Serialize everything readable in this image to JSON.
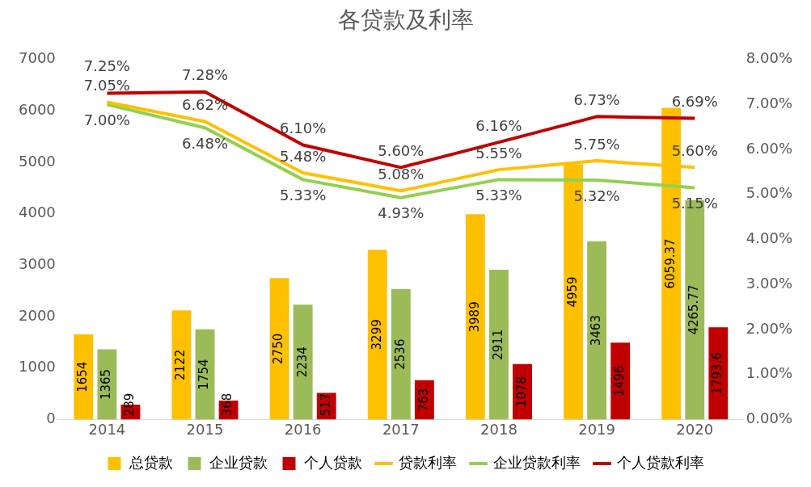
{
  "chart_data": {
    "type": "bar",
    "title": "各贷款及利率",
    "categories": [
      "2014",
      "2015",
      "2016",
      "2017",
      "2018",
      "2019",
      "2020"
    ],
    "ylim": [
      0,
      7000
    ],
    "yticks": [
      0,
      1000,
      2000,
      3000,
      4000,
      5000,
      6000,
      7000
    ],
    "y2lim": [
      0,
      8
    ],
    "y2ticks": [
      {
        "value": 0,
        "label": "0.00%"
      },
      {
        "value": 1,
        "label": "1.00%"
      },
      {
        "value": 2,
        "label": "2.00%"
      },
      {
        "value": 3,
        "label": "3.00%"
      },
      {
        "value": 4,
        "label": "4.00%"
      },
      {
        "value": 5,
        "label": "5.00%"
      },
      {
        "value": 6,
        "label": "6.00%"
      },
      {
        "value": 7,
        "label": "7.00%"
      },
      {
        "value": 8,
        "label": "8.00%"
      }
    ],
    "grid": false,
    "legend": "bottom",
    "series": [
      {
        "name": "总贷款",
        "type": "bar",
        "color": "#ffc000",
        "values": [
          1654,
          2122,
          2750,
          3299,
          3989,
          4959,
          6059.37
        ],
        "value_labels": [
          "1654",
          "2122",
          "2750",
          "3299",
          "3989",
          "4959",
          "6059.37"
        ]
      },
      {
        "name": "企业贷款",
        "type": "bar",
        "color": "#9bbb59",
        "values": [
          1365,
          1754,
          2234,
          2536,
          2911,
          3463,
          4265.77
        ],
        "value_labels": [
          "1365",
          "1754",
          "2234",
          "2536",
          "2911",
          "3463",
          "4265.77"
        ]
      },
      {
        "name": "个人贷款",
        "type": "bar",
        "color": "#c00000",
        "values": [
          289,
          368,
          517,
          763,
          1078,
          1496,
          1793.6
        ],
        "value_labels": [
          "289",
          "368",
          "517",
          "763",
          "1078",
          "1496",
          "1793.6"
        ]
      },
      {
        "name": "贷款利率",
        "type": "line",
        "axis": "y2",
        "color": "#ffc000",
        "values": [
          7.05,
          6.62,
          5.48,
          5.08,
          5.55,
          5.75,
          5.6
        ],
        "value_labels": [
          "7.05%",
          "6.62%",
          "5.48%",
          "5.08%",
          "5.55%",
          "5.75%",
          "5.60%"
        ]
      },
      {
        "name": "企业贷款利率",
        "type": "line",
        "axis": "y2",
        "color": "#92d050",
        "values": [
          7.0,
          6.48,
          5.33,
          4.93,
          5.33,
          5.32,
          5.15
        ],
        "value_labels": [
          "7.00%",
          "6.48%",
          "5.33%",
          "4.93%",
          "5.33%",
          "5.32%",
          "5.15%"
        ]
      },
      {
        "name": "个人贷款利率",
        "type": "line",
        "axis": "y2",
        "color": "#c00000",
        "values": [
          7.25,
          7.28,
          6.1,
          5.6,
          6.16,
          6.73,
          6.69
        ],
        "value_labels": [
          "7.25%",
          "7.28%",
          "6.10%",
          "5.60%",
          "6.16%",
          "6.73%",
          "6.69%"
        ]
      }
    ]
  }
}
